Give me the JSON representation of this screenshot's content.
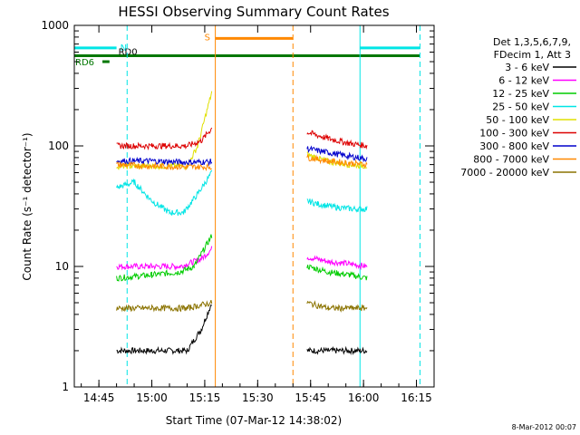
{
  "chart_data": {
    "type": "line",
    "title": "HESSI Observing Summary Count Rates",
    "xlabel": "Start Time (07-Mar-12 14:38:02)",
    "ylabel": "Count Rate (s⁻¹ detector⁻¹)",
    "y_scale": "log",
    "ylim": [
      1,
      1000
    ],
    "xlim": [
      "14:38:02",
      "16:20:00"
    ],
    "x_ticks": [
      "14:45",
      "15:00",
      "15:15",
      "15:30",
      "15:45",
      "16:00",
      "16:15"
    ],
    "y_ticks": [
      "1",
      "10",
      "100",
      "1000"
    ],
    "legend_header": [
      "Det 1,3,5,6,7,9,",
      "FDecim 1, Att 3"
    ],
    "series": [
      {
        "name": "3 - 6 keV",
        "color": "#000000",
        "segments": [
          [
            [
              "14:50",
              2.0
            ],
            [
              "15:00",
              2.0
            ],
            [
              "15:10",
              2.0
            ],
            [
              "15:14",
              3.0
            ],
            [
              "15:17",
              5.0
            ]
          ],
          [
            [
              "15:44",
              2.0
            ],
            [
              "15:50",
              2.0
            ],
            [
              "15:56",
              2.0
            ],
            [
              "16:01",
              2.0
            ]
          ]
        ]
      },
      {
        "name": "6 - 12 keV",
        "color": "#ff00ff",
        "segments": [
          [
            [
              "14:50",
              10.0
            ],
            [
              "15:00",
              10.0
            ],
            [
              "15:08",
              10.0
            ],
            [
              "15:14",
              11.5
            ],
            [
              "15:17",
              14.0
            ]
          ],
          [
            [
              "15:44",
              12.0
            ],
            [
              "15:50",
              11.0
            ],
            [
              "15:56",
              10.5
            ],
            [
              "16:01",
              10.0
            ]
          ]
        ]
      },
      {
        "name": "12 - 25 keV",
        "color": "#00cc00",
        "segments": [
          [
            [
              "14:50",
              8.0
            ],
            [
              "15:00",
              8.5
            ],
            [
              "15:08",
              9.0
            ],
            [
              "15:12",
              10.0
            ],
            [
              "15:17",
              18.0
            ]
          ],
          [
            [
              "15:44",
              10.0
            ],
            [
              "15:50",
              9.0
            ],
            [
              "15:56",
              8.5
            ],
            [
              "16:01",
              8.0
            ]
          ]
        ]
      },
      {
        "name": "25 - 50 keV",
        "color": "#00e5e5",
        "segments": [
          [
            [
              "14:50",
              45.0
            ],
            [
              "14:55",
              50.0
            ],
            [
              "15:00",
              35.0
            ],
            [
              "15:05",
              28.0
            ],
            [
              "15:09",
              28.0
            ],
            [
              "15:13",
              40.0
            ],
            [
              "15:17",
              60.0
            ]
          ],
          [
            [
              "15:44",
              35.0
            ],
            [
              "15:47",
              33.0
            ],
            [
              "15:52",
              31.0
            ],
            [
              "15:57",
              30.0
            ],
            [
              "16:01",
              30.0
            ]
          ]
        ]
      },
      {
        "name": "50 - 100 keV",
        "color": "#e0e000",
        "segments": [
          [
            [
              "14:50",
              68.0
            ],
            [
              "15:00",
              68.0
            ],
            [
              "15:10",
              68.0
            ],
            [
              "15:13",
              100.0
            ],
            [
              "15:17",
              280.0
            ]
          ],
          [
            [
              "15:44",
              85.0
            ],
            [
              "15:50",
              74.0
            ],
            [
              "15:56",
              70.0
            ],
            [
              "16:01",
              68.0
            ]
          ]
        ]
      },
      {
        "name": "100 - 300 keV",
        "color": "#dd0000",
        "segments": [
          [
            [
              "14:50",
              100.0
            ],
            [
              "15:00",
              100.0
            ],
            [
              "15:10",
              100.0
            ],
            [
              "15:14",
              110.0
            ],
            [
              "15:17",
              140.0
            ]
          ],
          [
            [
              "15:44",
              130.0
            ],
            [
              "15:50",
              115.0
            ],
            [
              "15:56",
              105.0
            ],
            [
              "16:01",
              100.0
            ]
          ]
        ]
      },
      {
        "name": "300 - 800 keV",
        "color": "#0000cc",
        "segments": [
          [
            [
              "14:50",
              75.0
            ],
            [
              "15:00",
              75.0
            ],
            [
              "15:10",
              73.0
            ],
            [
              "15:17",
              74.0
            ]
          ],
          [
            [
              "15:44",
              95.0
            ],
            [
              "15:50",
              88.0
            ],
            [
              "15:56",
              82.0
            ],
            [
              "16:01",
              78.0
            ]
          ]
        ]
      },
      {
        "name": "800 - 7000 keV",
        "color": "#ff8800",
        "segments": [
          [
            [
              "14:50",
              70.0
            ],
            [
              "15:00",
              68.0
            ],
            [
              "15:10",
              67.0
            ],
            [
              "15:17",
              67.0
            ]
          ],
          [
            [
              "15:44",
              80.0
            ],
            [
              "15:50",
              75.0
            ],
            [
              "15:56",
              72.0
            ],
            [
              "16:01",
              70.0
            ]
          ]
        ]
      },
      {
        "name": "7000 - 20000 keV",
        "color": "#8b7300",
        "segments": [
          [
            [
              "14:50",
              4.5
            ],
            [
              "15:00",
              4.5
            ],
            [
              "15:10",
              4.5
            ],
            [
              "15:17",
              5.0
            ]
          ],
          [
            [
              "15:44",
              5.0
            ],
            [
              "15:50",
              4.5
            ],
            [
              "15:56",
              4.5
            ],
            [
              "16:01",
              4.5
            ]
          ]
        ]
      }
    ],
    "annotations": {
      "bars": [
        {
          "label": "N",
          "color": "#00e5e5",
          "x": [
            "14:38:02",
            "14:50"
          ],
          "y": 650
        },
        {
          "label": "S",
          "color": "#ff8800",
          "x": [
            "15:18",
            "15:40"
          ],
          "y": 780
        },
        {
          "label": "",
          "color": "#00e5e5",
          "x": [
            "15:59",
            "16:16"
          ],
          "y": 650
        },
        {
          "label": "RD0",
          "color": "#007700",
          "x": [
            "14:38:02",
            "16:16"
          ],
          "y": 560
        },
        {
          "label": "RD6",
          "color": "#007700",
          "x": [
            "14:46",
            "14:48"
          ],
          "y": 500
        }
      ],
      "vlines": [
        {
          "x": "14:53",
          "color": "#00e5e5",
          "style": "dashed"
        },
        {
          "x": "15:18",
          "color": "#ff8800",
          "style": "solid"
        },
        {
          "x": "15:40",
          "color": "#ff8800",
          "style": "dashed"
        },
        {
          "x": "15:59",
          "color": "#00e5e5",
          "style": "solid"
        },
        {
          "x": "16:16",
          "color": "#00e5e5",
          "style": "dashed"
        }
      ]
    },
    "footer_date": "8-Mar-2012 00:07"
  }
}
